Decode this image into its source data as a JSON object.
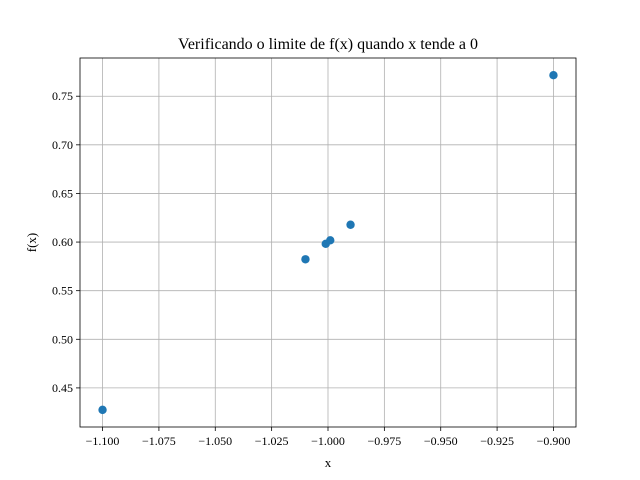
{
  "chart_data": {
    "type": "scatter",
    "title": "Verificando o limite de f(x) quando x tende a 0",
    "xlabel": "x",
    "ylabel": "f(x)",
    "xlim": [
      -1.11,
      -0.89
    ],
    "ylim": [
      0.4098,
      0.7893
    ],
    "xticks": [
      -1.1,
      -1.075,
      -1.05,
      -1.025,
      -1.0,
      -0.975,
      -0.95,
      -0.925,
      -0.9
    ],
    "xtick_labels": [
      "−1.100",
      "−1.075",
      "−1.050",
      "−1.025",
      "−1.000",
      "−0.975",
      "−0.950",
      "−0.925",
      "−0.900"
    ],
    "yticks": [
      0.45,
      0.5,
      0.55,
      0.6,
      0.65,
      0.7,
      0.75
    ],
    "ytick_labels": [
      "0.45",
      "0.50",
      "0.55",
      "0.60",
      "0.65",
      "0.70",
      "0.75"
    ],
    "grid": true,
    "marker_color": "#1f77b4",
    "series": [
      {
        "x": [
          -1.1,
          -1.01,
          -1.001,
          -0.999,
          -0.99,
          -0.9
        ],
        "y": [
          0.4274,
          0.5823,
          0.5982,
          0.6018,
          0.6178,
          0.7716
        ]
      }
    ]
  }
}
